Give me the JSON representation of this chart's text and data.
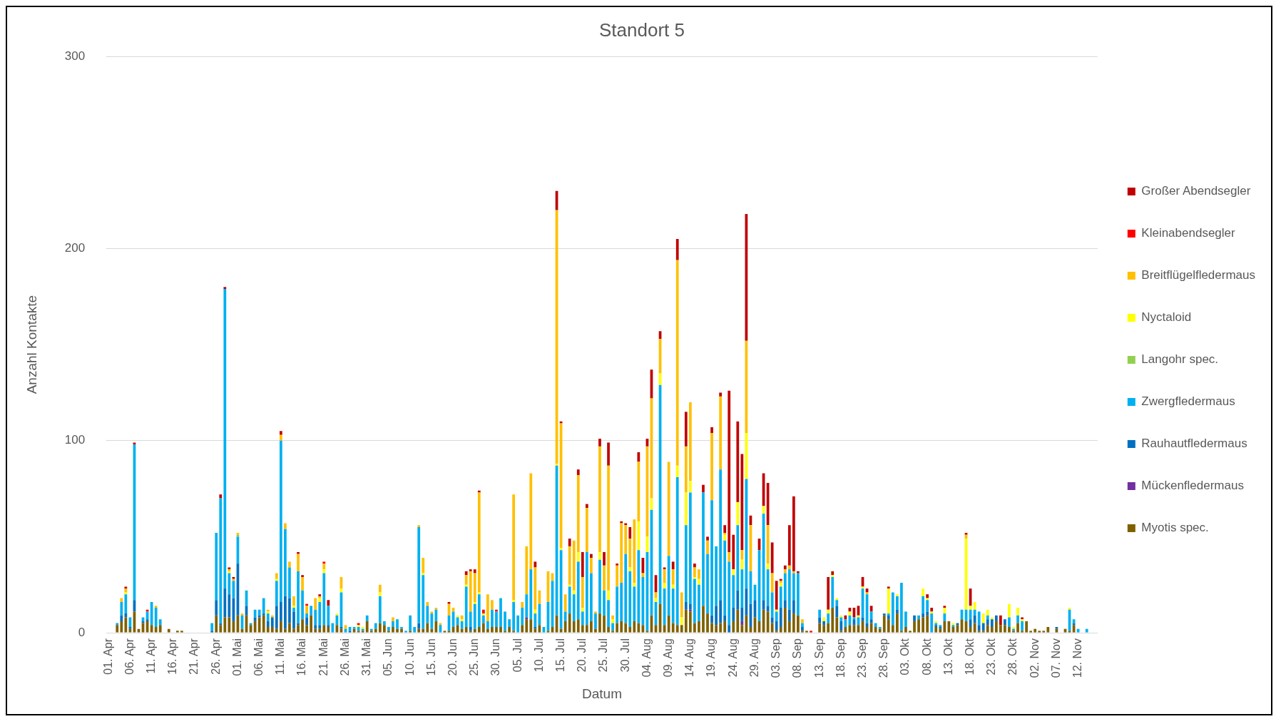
{
  "chart_data": {
    "type": "bar",
    "title": "Standort 5",
    "xlabel": "Datum",
    "ylabel": "Anzahl Kontakte",
    "categories": [
      "01. Apr",
      null,
      null,
      null,
      null,
      "06. Apr",
      null,
      null,
      null,
      null,
      "11. Apr",
      null,
      null,
      null,
      null,
      "16. Apr",
      null,
      null,
      null,
      null,
      "21. Apr",
      null,
      null,
      null,
      null,
      "26. Apr",
      null,
      null,
      null,
      null,
      "01. Mai",
      null,
      null,
      null,
      null,
      "06. Mai",
      null,
      null,
      null,
      null,
      "11. Mai",
      null,
      null,
      null,
      null,
      "16. Mai",
      null,
      null,
      null,
      null,
      "21. Mai",
      null,
      null,
      null,
      null,
      "26. Mai",
      null,
      null,
      null,
      null,
      "31. Mai",
      null,
      null,
      null,
      null,
      "05. Jun",
      null,
      null,
      null,
      null,
      "10. Jun",
      null,
      null,
      null,
      null,
      "15. Jun",
      null,
      null,
      null,
      null,
      "20. Jun",
      null,
      null,
      null,
      null,
      "25. Jun",
      null,
      null,
      null,
      null,
      "30. Jun",
      null,
      null,
      null,
      null,
      "05. Jul",
      null,
      null,
      null,
      null,
      "10. Jul",
      null,
      null,
      null,
      null,
      "15. Jul",
      null,
      null,
      null,
      null,
      "20. Jul",
      null,
      null,
      null,
      null,
      "25. Jul",
      null,
      null,
      null,
      null,
      "30. Jul",
      null,
      null,
      null,
      null,
      "04. Aug",
      null,
      null,
      null,
      null,
      "09. Aug",
      null,
      null,
      null,
      null,
      "14. Aug",
      null,
      null,
      null,
      null,
      "19. Aug",
      null,
      null,
      null,
      null,
      "24. Aug",
      null,
      null,
      null,
      null,
      "29. Aug",
      null,
      null,
      null,
      null,
      "03. Sep",
      null,
      null,
      null,
      null,
      "08. Sep",
      null,
      null,
      null,
      null,
      "13. Sep",
      null,
      null,
      null,
      null,
      "18. Sep",
      null,
      null,
      null,
      null,
      "23. Sep",
      null,
      null,
      null,
      null,
      "28. Sep",
      null,
      null,
      null,
      null,
      "03. Okt",
      null,
      null,
      null,
      null,
      "08. Okt",
      null,
      null,
      null,
      null,
      "13. Okt",
      null,
      null,
      null,
      null,
      "18. Okt",
      null,
      null,
      null,
      null,
      "23. Okt",
      null,
      null,
      null,
      null,
      "28. Okt",
      null,
      null,
      null,
      null,
      "02. Nov",
      null,
      null,
      null,
      null,
      "07. Nov",
      null,
      null,
      null,
      null,
      "12. Nov",
      null,
      null,
      null,
      null
    ],
    "stacked": true,
    "ylim": [
      0,
      300
    ],
    "yticks": [
      0,
      100,
      200,
      300
    ],
    "grid": "y",
    "legend": "right",
    "series": [
      {
        "name": "Myotis spec.",
        "color": "#7f6000",
        "values": [
          0,
          0,
          4,
          6,
          8,
          2,
          11,
          2,
          5,
          6,
          4,
          3,
          4,
          0,
          2,
          0,
          1,
          1,
          0,
          0,
          0,
          0,
          0,
          0,
          0,
          9,
          4,
          8,
          8,
          6,
          9,
          2,
          9,
          4,
          6,
          8,
          9,
          3,
          3,
          2,
          6,
          2,
          5,
          2,
          4,
          7,
          4,
          9,
          2,
          2,
          4,
          3,
          0,
          4,
          2,
          0,
          0,
          2,
          1,
          1,
          6,
          1,
          2,
          5,
          4,
          1,
          3,
          2,
          2,
          0,
          1,
          0,
          2,
          2,
          5,
          2,
          6,
          0,
          1,
          1,
          3,
          4,
          2,
          3,
          1,
          2,
          3,
          5,
          2,
          3,
          3,
          3,
          1,
          3,
          1,
          0,
          4,
          7,
          7,
          2,
          4,
          0,
          1,
          3,
          9,
          2,
          6,
          10,
          6,
          7,
          4,
          4,
          6,
          2,
          10,
          9,
          3,
          1,
          5,
          6,
          5,
          3,
          6,
          5,
          4,
          1,
          9,
          4,
          15,
          4,
          9,
          5,
          4,
          4,
          12,
          11,
          5,
          6,
          14,
          10,
          5,
          4,
          5,
          6,
          0,
          6,
          12,
          4,
          9,
          3,
          8,
          6,
          12,
          11,
          5,
          1,
          3,
          13,
          6,
          10,
          9,
          1,
          1,
          0,
          0,
          5,
          4,
          5,
          13,
          8,
          1,
          3,
          4,
          4,
          4,
          6,
          3,
          5,
          3,
          2,
          9,
          7,
          4,
          10,
          1,
          3,
          1,
          6,
          7,
          8,
          9,
          0,
          3,
          2,
          6,
          6,
          3,
          4,
          7,
          6,
          3,
          5,
          1,
          1,
          4,
          3,
          6,
          4,
          4,
          3,
          1,
          5,
          1,
          6,
          1,
          2,
          1,
          1,
          3,
          0,
          2,
          0,
          2,
          1,
          4,
          0,
          0,
          0,
          0,
          0
        ]
      },
      {
        "name": "Mückenfledermaus",
        "color": "#7030a0",
        "values": [
          0,
          0,
          0,
          0,
          0,
          0,
          0,
          0,
          0,
          0,
          0,
          0,
          0,
          0,
          0,
          0,
          0,
          0,
          0,
          0,
          0,
          0,
          0,
          0,
          0,
          0,
          0,
          0,
          0,
          0,
          0,
          0,
          0,
          0,
          0,
          0,
          0,
          0,
          0,
          0,
          0,
          0,
          0,
          0,
          0,
          0,
          0,
          0,
          0,
          0,
          0,
          0,
          0,
          0,
          0,
          0,
          0,
          0,
          0,
          0,
          0,
          0,
          0,
          0,
          0,
          0,
          0,
          0,
          0,
          0,
          0,
          0,
          0,
          0,
          0,
          0,
          0,
          0,
          0,
          0,
          0,
          0,
          0,
          0,
          0,
          0,
          0,
          0,
          0,
          0,
          0,
          0,
          0,
          0,
          0,
          0,
          0,
          1,
          0,
          0,
          0,
          0,
          0,
          0,
          0,
          0,
          0,
          0,
          0,
          0,
          0,
          0,
          0,
          0,
          0,
          0,
          0,
          0,
          0,
          0,
          0,
          0,
          0,
          0,
          0,
          0,
          0,
          0,
          0,
          0,
          0,
          0,
          0,
          0,
          0,
          1,
          0,
          0,
          0,
          0,
          0,
          0,
          0,
          0,
          0,
          0,
          0,
          2,
          0,
          0,
          0,
          0,
          0,
          0,
          0,
          0,
          0,
          0,
          0,
          0,
          0,
          0,
          0,
          0,
          0,
          0,
          0,
          0,
          0,
          0,
          0,
          0,
          0,
          0,
          0,
          0,
          0,
          0,
          0,
          0,
          0,
          0,
          0,
          0,
          0,
          0,
          0,
          0,
          0,
          0,
          0,
          0,
          0,
          0,
          0,
          0,
          0,
          0,
          0,
          0,
          0,
          0,
          0,
          0,
          0,
          0,
          0,
          0,
          0,
          0,
          0,
          0,
          0,
          0,
          0,
          0,
          0,
          0,
          0,
          0,
          0,
          0,
          0,
          0,
          0,
          0,
          0,
          0,
          0,
          0
        ]
      },
      {
        "name": "Rauhautfledermaus",
        "color": "#0070c0",
        "values": [
          0,
          0,
          0,
          3,
          2,
          1,
          6,
          0,
          1,
          1,
          0,
          0,
          0,
          0,
          0,
          0,
          0,
          0,
          0,
          0,
          0,
          0,
          0,
          0,
          1,
          8,
          1,
          15,
          12,
          12,
          27,
          0,
          5,
          0,
          2,
          1,
          1,
          3,
          5,
          12,
          10,
          17,
          13,
          9,
          1,
          0,
          4,
          0,
          2,
          2,
          0,
          1,
          0,
          0,
          1,
          0,
          1,
          0,
          0,
          0,
          0,
          0,
          0,
          0,
          0,
          0,
          0,
          0,
          0,
          0,
          0,
          0,
          3,
          0,
          0,
          0,
          0,
          0,
          0,
          0,
          0,
          0,
          0,
          0,
          2,
          0,
          0,
          0,
          0,
          0,
          0,
          0,
          0,
          0,
          0,
          0,
          0,
          0,
          0,
          1,
          0,
          0,
          0,
          0,
          0,
          0,
          0,
          0,
          0,
          0,
          0,
          0,
          0,
          0,
          0,
          0,
          0,
          0,
          0,
          0,
          0,
          0,
          0,
          0,
          0,
          0,
          0,
          0,
          0,
          0,
          0,
          0,
          0,
          0,
          4,
          3,
          0,
          0,
          0,
          0,
          4,
          10,
          12,
          3,
          4,
          7,
          10,
          7,
          14,
          12,
          9,
          0,
          5,
          3,
          3,
          5,
          10,
          4,
          6,
          7,
          0,
          2,
          0,
          0,
          0,
          3,
          2,
          0,
          0,
          6,
          5,
          0,
          0,
          3,
          0,
          2,
          2,
          2,
          0,
          0,
          1,
          2,
          0,
          2,
          0,
          0,
          0,
          3,
          0,
          2,
          2,
          0,
          1,
          1,
          0,
          0,
          0,
          1,
          0,
          0,
          4,
          4,
          3,
          4,
          3,
          4,
          3,
          0,
          3,
          0,
          0,
          0,
          0,
          0,
          0,
          0,
          0,
          0,
          0,
          0,
          1,
          0,
          0,
          0,
          1,
          0,
          0,
          0,
          0,
          0
        ]
      },
      {
        "name": "Zwergfledermaus",
        "color": "#00b0f0",
        "values": [
          0,
          0,
          1,
          7,
          10,
          5,
          81,
          0,
          2,
          4,
          12,
          10,
          3,
          0,
          0,
          0,
          0,
          0,
          0,
          0,
          0,
          0,
          0,
          0,
          4,
          35,
          65,
          156,
          11,
          9,
          14,
          7,
          8,
          1,
          4,
          3,
          8,
          4,
          0,
          13,
          84,
          35,
          16,
          2,
          27,
          15,
          2,
          5,
          8,
          12,
          27,
          10,
          5,
          5,
          18,
          2,
          2,
          1,
          2,
          1,
          3,
          1,
          3,
          14,
          2,
          2,
          3,
          5,
          1,
          1,
          8,
          3,
          50,
          28,
          9,
          8,
          6,
          4,
          0,
          8,
          8,
          4,
          4,
          21,
          8,
          13,
          17,
          4,
          4,
          9,
          8,
          15,
          10,
          4,
          15,
          9,
          9,
          12,
          26,
          7,
          11,
          3,
          15,
          24,
          78,
          41,
          5,
          14,
          14,
          30,
          7,
          38,
          25,
          8,
          28,
          13,
          14,
          4,
          19,
          20,
          36,
          29,
          18,
          38,
          25,
          41,
          55,
          12,
          114,
          19,
          31,
          18,
          77,
          0,
          40,
          58,
          23,
          19,
          59,
          31,
          60,
          31,
          68,
          39,
          33,
          17,
          34,
          20,
          57,
          17,
          8,
          37,
          45,
          19,
          13,
          5,
          11,
          14,
          21,
          14,
          22,
          2,
          0,
          0,
          0,
          4,
          0,
          5,
          16,
          3,
          2,
          4,
          5,
          1,
          4,
          15,
          15,
          4,
          2,
          1,
          0,
          1,
          17,
          7,
          25,
          8,
          0,
          0,
          2,
          9,
          6,
          10,
          1,
          1,
          4,
          0,
          1,
          0,
          5,
          6,
          5,
          3,
          7,
          0,
          2,
          0,
          0,
          0,
          0,
          5,
          1,
          4,
          5,
          0,
          0,
          0,
          0,
          0,
          0,
          0,
          0,
          0,
          0,
          11,
          2,
          2,
          0,
          2,
          0,
          0
        ]
      },
      {
        "name": "Langohr spec.",
        "color": "#92d050",
        "values": [
          0,
          0,
          0,
          0,
          0,
          0,
          0,
          0,
          0,
          0,
          0,
          0,
          0,
          0,
          0,
          0,
          0,
          0,
          0,
          0,
          0,
          0,
          0,
          0,
          0,
          0,
          0,
          0,
          0,
          0,
          1,
          0,
          0,
          0,
          0,
          0,
          0,
          0,
          0,
          0,
          0,
          0,
          0,
          0,
          0,
          0,
          0,
          0,
          0,
          0,
          0,
          0,
          0,
          0,
          0,
          0,
          0,
          0,
          0,
          0,
          0,
          0,
          0,
          0,
          0,
          0,
          0,
          0,
          0,
          0,
          0,
          0,
          0,
          0,
          0,
          0,
          0,
          0,
          0,
          0,
          0,
          0,
          0,
          0,
          0,
          0,
          0,
          0,
          0,
          0,
          0,
          0,
          0,
          0,
          0,
          0,
          0,
          0,
          0,
          0,
          0,
          0,
          0,
          0,
          0,
          0,
          0,
          0,
          0,
          0,
          0,
          0,
          0,
          0,
          0,
          0,
          0,
          0,
          0,
          0,
          0,
          0,
          0,
          0,
          0,
          0,
          0,
          0,
          0,
          0,
          0,
          0,
          0,
          0,
          0,
          0,
          0,
          0,
          0,
          0,
          0,
          0,
          0,
          0,
          0,
          0,
          0,
          0,
          0,
          0,
          0,
          0,
          0,
          0,
          0,
          0,
          0,
          0,
          0,
          0,
          0,
          0,
          0,
          0,
          0,
          0,
          0,
          0,
          0,
          0,
          0,
          0,
          0,
          0,
          0,
          0,
          0,
          0,
          0,
          0,
          0,
          0,
          0,
          0,
          0,
          0,
          0,
          0,
          0,
          0,
          0,
          0,
          0,
          0,
          0,
          0,
          0,
          0,
          0,
          0,
          0,
          0,
          0,
          0,
          0,
          0,
          0,
          0,
          0,
          0,
          0,
          0,
          0,
          0,
          0,
          0,
          0,
          0,
          0,
          0,
          0,
          0,
          0,
          0,
          0,
          0,
          0,
          0,
          0,
          0
        ]
      },
      {
        "name": "Nyctaloid",
        "color": "#ffff00",
        "values": [
          0,
          0,
          0,
          0,
          1,
          0,
          0,
          0,
          0,
          0,
          0,
          0,
          0,
          0,
          0,
          0,
          0,
          0,
          0,
          0,
          0,
          0,
          0,
          0,
          0,
          0,
          0,
          0,
          1,
          0,
          0,
          0,
          0,
          0,
          0,
          0,
          0,
          1,
          0,
          1,
          0,
          0,
          0,
          1,
          0,
          0,
          0,
          0,
          0,
          2,
          2,
          0,
          0,
          1,
          2,
          0,
          0,
          0,
          1,
          1,
          0,
          0,
          0,
          2,
          0,
          0,
          0,
          0,
          0,
          0,
          0,
          0,
          0,
          1,
          0,
          0,
          0,
          0,
          0,
          0,
          0,
          1,
          1,
          1,
          0,
          1,
          1,
          1,
          0,
          0,
          0,
          0,
          0,
          0,
          1,
          0,
          0,
          0,
          0,
          2,
          0,
          0,
          0,
          0,
          1,
          1,
          0,
          1,
          2,
          5,
          2,
          0,
          0,
          0,
          4,
          0,
          5,
          2,
          0,
          0,
          0,
          2,
          2,
          15,
          0,
          8,
          6,
          2,
          6,
          3,
          0,
          2,
          6,
          4,
          17,
          6,
          1,
          3,
          0,
          0,
          0,
          0,
          0,
          3,
          0,
          3,
          12,
          5,
          24,
          0,
          0,
          0,
          4,
          3,
          0,
          1,
          2,
          0,
          0,
          0,
          0,
          0,
          0,
          0,
          0,
          0,
          2,
          2,
          1,
          1,
          1,
          0,
          2,
          0,
          1,
          1,
          0,
          0,
          0,
          0,
          0,
          13,
          0,
          1,
          0,
          0,
          0,
          0,
          0,
          4,
          1,
          1,
          1,
          0,
          3,
          0,
          1,
          0,
          0,
          37,
          2,
          4,
          0,
          5,
          3,
          1,
          0,
          0,
          0,
          7,
          1,
          4,
          1,
          0,
          0,
          0,
          0,
          0,
          0,
          0,
          0,
          0,
          0,
          1,
          0,
          0,
          0,
          0,
          0,
          0
        ]
      },
      {
        "name": "Breitflügelfledermaus",
        "color": "#ffc000",
        "values": [
          0,
          0,
          0,
          2,
          2,
          0,
          0,
          0,
          0,
          0,
          0,
          1,
          0,
          0,
          0,
          0,
          0,
          0,
          0,
          0,
          0,
          0,
          0,
          0,
          0,
          0,
          0,
          0,
          1,
          1,
          1,
          1,
          0,
          0,
          0,
          0,
          0,
          1,
          1,
          3,
          3,
          3,
          3,
          5,
          9,
          7,
          4,
          0,
          6,
          1,
          3,
          0,
          0,
          0,
          6,
          2,
          0,
          0,
          0,
          0,
          0,
          0,
          0,
          4,
          0,
          0,
          2,
          0,
          0,
          0,
          0,
          0,
          1,
          8,
          2,
          1,
          1,
          1,
          0,
          6,
          2,
          0,
          2,
          5,
          21,
          15,
          52,
          0,
          14,
          5,
          0,
          0,
          0,
          0,
          55,
          0,
          3,
          25,
          50,
          22,
          7,
          0,
          16,
          4,
          132,
          65,
          9,
          20,
          26,
          40,
          16,
          23,
          8,
          1,
          55,
          13,
          65,
          2,
          11,
          31,
          15,
          15,
          33,
          31,
          2,
          47,
          52,
          3,
          18,
          7,
          49,
          8,
          107,
          13,
          24,
          41,
          5,
          5,
          0,
          7,
          35,
          0,
          38,
          1,
          5,
          0,
          0,
          5,
          48,
          24,
          0,
          0,
          0,
          20,
          10,
          0,
          1,
          2,
          2,
          1,
          0,
          2,
          0,
          0,
          0,
          0,
          0,
          0,
          0,
          0,
          0,
          0,
          0,
          0,
          0,
          0,
          1,
          0,
          0,
          0,
          0,
          0,
          0,
          0,
          0,
          0,
          0,
          0,
          0,
          0,
          0,
          0,
          0,
          0,
          0,
          0,
          0,
          0,
          0,
          2,
          0,
          0,
          0,
          0,
          0,
          0,
          0,
          0,
          0,
          0,
          0,
          0,
          0,
          0,
          0,
          0,
          0,
          0,
          0,
          0,
          0,
          0,
          0,
          0,
          0,
          0,
          0,
          0,
          0,
          0
        ]
      },
      {
        "name": "Kleinabendsegler",
        "color": "#ff0000",
        "values": [
          0,
          0,
          0,
          0,
          0,
          0,
          0,
          0,
          0,
          1,
          0,
          0,
          0,
          0,
          0,
          0,
          0,
          0,
          0,
          0,
          0,
          0,
          0,
          0,
          0,
          0,
          0,
          0,
          0,
          0,
          0,
          0,
          0,
          0,
          0,
          0,
          0,
          0,
          0,
          0,
          0,
          0,
          0,
          0,
          0,
          0,
          1,
          0,
          0,
          0,
          1,
          0,
          0,
          0,
          0,
          0,
          0,
          0,
          1,
          0,
          0,
          0,
          0,
          0,
          0,
          0,
          0,
          0,
          0,
          0,
          0,
          0,
          0,
          0,
          0,
          0,
          0,
          0,
          0,
          0,
          0,
          0,
          0,
          0,
          0,
          0,
          0,
          2,
          0,
          0,
          1,
          0,
          0,
          0,
          0,
          0,
          0,
          0,
          0,
          0,
          0,
          0,
          0,
          0,
          0,
          0,
          0,
          0,
          0,
          0,
          0,
          0,
          0,
          0,
          0,
          0,
          0,
          0,
          0,
          0,
          0,
          0,
          0,
          0,
          0,
          0,
          0,
          0,
          0,
          0,
          0,
          0,
          0,
          0,
          0,
          0,
          0,
          0,
          0,
          0,
          0,
          0,
          0,
          0,
          0,
          0,
          0,
          0,
          0,
          0,
          0,
          0,
          0,
          0,
          0,
          0,
          0,
          0,
          0,
          0,
          0,
          0,
          0,
          1,
          0,
          0,
          0,
          0,
          0,
          0,
          0,
          0,
          0,
          0,
          0,
          0,
          0,
          0,
          0,
          0,
          0,
          0,
          0,
          0,
          0,
          0,
          0,
          0,
          0,
          0,
          0,
          0,
          0,
          0,
          0,
          0,
          0,
          0,
          0,
          0,
          0,
          0,
          0,
          0,
          0,
          0,
          0,
          0,
          0,
          0,
          0,
          0,
          0,
          0,
          0,
          0,
          0,
          0,
          0,
          0,
          0,
          0,
          0,
          0,
          0,
          0,
          0,
          0,
          0,
          0
        ]
      },
      {
        "name": "Großer Abendsegler",
        "color": "#c00000",
        "values": [
          0,
          0,
          0,
          0,
          1,
          0,
          1,
          0,
          0,
          0,
          0,
          0,
          0,
          0,
          0,
          0,
          0,
          0,
          0,
          0,
          0,
          0,
          0,
          0,
          0,
          0,
          2,
          1,
          1,
          1,
          0,
          0,
          0,
          0,
          0,
          0,
          0,
          0,
          0,
          0,
          2,
          0,
          0,
          0,
          1,
          1,
          0,
          0,
          0,
          1,
          0,
          3,
          0,
          0,
          0,
          0,
          0,
          0,
          0,
          0,
          0,
          0,
          0,
          0,
          0,
          0,
          0,
          0,
          0,
          0,
          0,
          0,
          0,
          0,
          0,
          0,
          0,
          0,
          0,
          1,
          0,
          0,
          0,
          2,
          1,
          2,
          1,
          0,
          0,
          0,
          0,
          0,
          0,
          0,
          0,
          0,
          0,
          0,
          0,
          3,
          0,
          0,
          0,
          0,
          10,
          1,
          0,
          4,
          0,
          3,
          13,
          2,
          2,
          0,
          4,
          7,
          12,
          0,
          1,
          1,
          1,
          6,
          0,
          5,
          8,
          4,
          15,
          9,
          4,
          1,
          0,
          4,
          11,
          0,
          18,
          0,
          2,
          0,
          4,
          2,
          3,
          0,
          2,
          4,
          84,
          18,
          42,
          50,
          66,
          5,
          0,
          6,
          17,
          22,
          16,
          15,
          1,
          2,
          21,
          39,
          1,
          0,
          0,
          0,
          0,
          0,
          0,
          17,
          2,
          0,
          0,
          2,
          2,
          5,
          5,
          5,
          2,
          3,
          0,
          0,
          0,
          1,
          0,
          0,
          0,
          0,
          0,
          0,
          0,
          0,
          2,
          2,
          0,
          0,
          1,
          0,
          0,
          0,
          0,
          1,
          9,
          0,
          0,
          0,
          0,
          0,
          0,
          5,
          0,
          0,
          0,
          0,
          1,
          0,
          0,
          0,
          0,
          0,
          0,
          0,
          0,
          0,
          0,
          0,
          0,
          0,
          0,
          0,
          0,
          0
        ]
      }
    ]
  }
}
